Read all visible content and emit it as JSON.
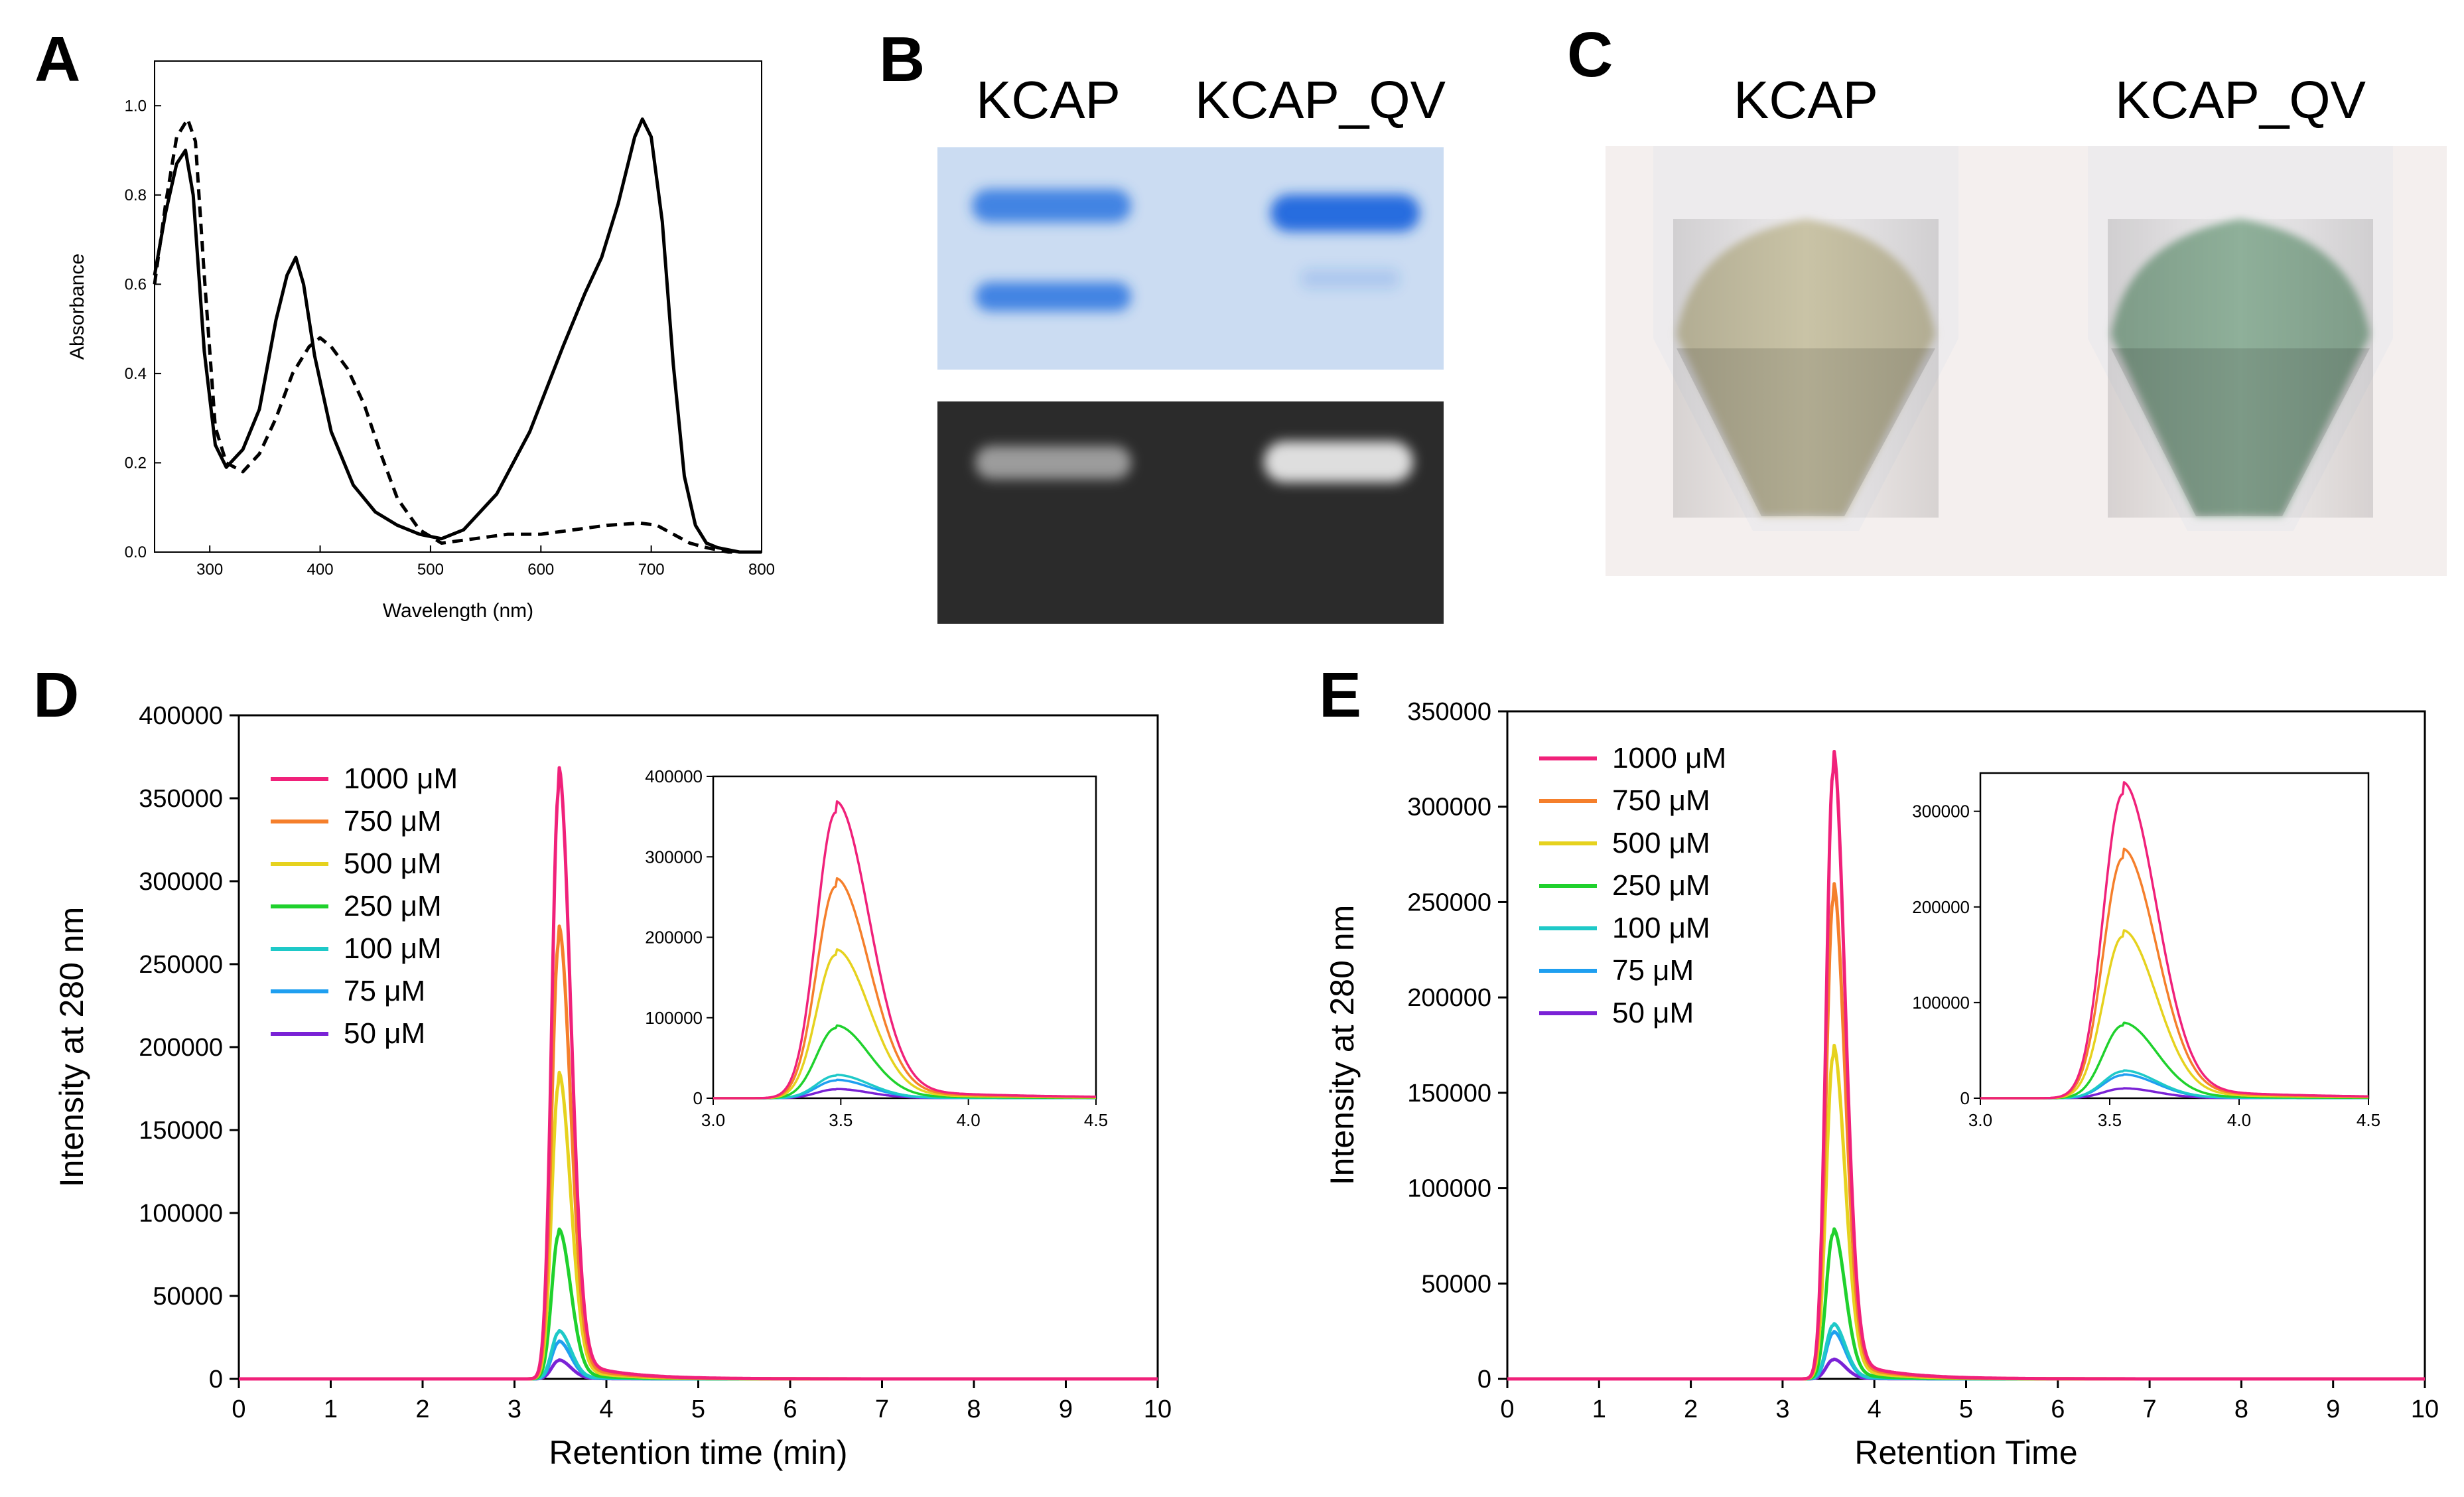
{
  "panel_letters": [
    "A",
    "B",
    "C",
    "D",
    "E"
  ],
  "panel_b": {
    "lanes": [
      "KCAP",
      "KCAP_QV"
    ],
    "coomassie_color": "#2a74e0",
    "fluorescence_color": "#e8e8e8"
  },
  "panel_c": {
    "tubes": [
      "KCAP",
      "KCAP_QV"
    ],
    "tube_colors": [
      "#c9c3a6",
      "#8fb09a"
    ]
  },
  "chart_data": [
    {
      "id": "A",
      "type": "line",
      "title": "",
      "xlabel": "Wavelength (nm)",
      "ylabel": "Absorbance",
      "xlim": [
        250,
        800
      ],
      "ylim": [
        0,
        1.1
      ],
      "xticks": [
        300,
        400,
        500,
        600,
        700,
        800
      ],
      "yticks": [
        0.0,
        0.2,
        0.4,
        0.6,
        0.8,
        1.0
      ],
      "grid": false,
      "series": [
        {
          "name": "solid",
          "style": "solid",
          "x": [
            250,
            260,
            270,
            278,
            285,
            295,
            305,
            315,
            330,
            345,
            360,
            370,
            378,
            385,
            395,
            410,
            430,
            450,
            470,
            490,
            510,
            530,
            560,
            590,
            620,
            640,
            655,
            670,
            685,
            692,
            700,
            710,
            720,
            730,
            740,
            750,
            760,
            780,
            800
          ],
          "y": [
            0.62,
            0.76,
            0.87,
            0.9,
            0.8,
            0.45,
            0.24,
            0.19,
            0.23,
            0.32,
            0.52,
            0.62,
            0.66,
            0.6,
            0.44,
            0.27,
            0.15,
            0.09,
            0.06,
            0.04,
            0.03,
            0.05,
            0.13,
            0.27,
            0.46,
            0.58,
            0.66,
            0.78,
            0.93,
            0.97,
            0.93,
            0.74,
            0.42,
            0.17,
            0.06,
            0.02,
            0.01,
            0.0,
            0.0
          ]
        },
        {
          "name": "dashed",
          "style": "dashed",
          "x": [
            250,
            260,
            270,
            280,
            287,
            295,
            305,
            315,
            330,
            345,
            360,
            375,
            390,
            400,
            410,
            425,
            440,
            455,
            470,
            490,
            510,
            540,
            570,
            600,
            630,
            660,
            690,
            705,
            720,
            735,
            750,
            770,
            800
          ],
          "y": [
            0.6,
            0.78,
            0.93,
            0.97,
            0.92,
            0.62,
            0.28,
            0.2,
            0.18,
            0.22,
            0.3,
            0.4,
            0.46,
            0.48,
            0.46,
            0.41,
            0.33,
            0.22,
            0.12,
            0.05,
            0.02,
            0.03,
            0.04,
            0.04,
            0.05,
            0.06,
            0.065,
            0.06,
            0.04,
            0.02,
            0.01,
            0.0,
            0.0
          ]
        }
      ]
    },
    {
      "id": "D",
      "type": "line",
      "title": "",
      "xlabel": "Retention time (min)",
      "ylabel": "Intensity at 280 nm",
      "xlim": [
        0,
        10
      ],
      "ylim": [
        0,
        400000
      ],
      "xticks": [
        0,
        1,
        2,
        3,
        4,
        5,
        6,
        7,
        8,
        9,
        10
      ],
      "yticks": [
        0,
        50000,
        100000,
        150000,
        200000,
        250000,
        300000,
        350000,
        400000
      ],
      "legend_position": "top-left",
      "peak_center": 3.48,
      "series": [
        {
          "name": "1000 μM",
          "color": "#f0217a",
          "peak": 355000
        },
        {
          "name": "750 μM",
          "color": "#f57f2b",
          "peak": 263000
        },
        {
          "name": "500 μM",
          "color": "#e6d21e",
          "peak": 178000
        },
        {
          "name": "250 μM",
          "color": "#1fd12d",
          "peak": 87000
        },
        {
          "name": "100 μM",
          "color": "#1ec9c8",
          "peak": 28000
        },
        {
          "name": "75 μM",
          "color": "#1f9ff0",
          "peak": 22000
        },
        {
          "name": "50 μM",
          "color": "#7a22d6",
          "peak": 11000
        }
      ],
      "inset": {
        "xlim": [
          3.0,
          4.5
        ],
        "ylim": [
          0,
          400000
        ],
        "xticks": [
          3.0,
          3.5,
          4.0,
          4.5
        ],
        "yticks": [
          0,
          100000,
          200000,
          300000,
          400000
        ]
      }
    },
    {
      "id": "E",
      "type": "line",
      "title": "",
      "xlabel": "Retention Time",
      "ylabel": "Intensity at 280 nm",
      "xlim": [
        0,
        10
      ],
      "ylim": [
        0,
        350000
      ],
      "xticks": [
        0,
        1,
        2,
        3,
        4,
        5,
        6,
        7,
        8,
        9,
        10
      ],
      "yticks": [
        0,
        50000,
        100000,
        150000,
        200000,
        250000,
        300000,
        350000
      ],
      "legend_position": "top-left",
      "peak_center": 3.55,
      "series": [
        {
          "name": "1000 μM",
          "color": "#f0217a",
          "peak": 318000
        },
        {
          "name": "750 μM",
          "color": "#f57f2b",
          "peak": 251000
        },
        {
          "name": "500 μM",
          "color": "#e6d21e",
          "peak": 169000
        },
        {
          "name": "250 μM",
          "color": "#1fd12d",
          "peak": 76000
        },
        {
          "name": "100 μM",
          "color": "#1ec9c8",
          "peak": 28000
        },
        {
          "name": "75 μM",
          "color": "#1f9ff0",
          "peak": 24000
        },
        {
          "name": "50 μM",
          "color": "#7a22d6",
          "peak": 10000
        }
      ],
      "inset": {
        "xlim": [
          3.0,
          4.5
        ],
        "ylim": [
          0,
          340000
        ],
        "xticks": [
          3.0,
          3.5,
          4.0,
          4.5
        ],
        "yticks": [
          0,
          100000,
          200000,
          300000
        ]
      }
    }
  ]
}
